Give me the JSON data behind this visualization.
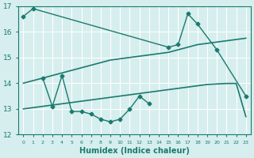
{
  "xlabel": "Humidex (Indice chaleur)",
  "x_values": [
    0,
    1,
    2,
    3,
    4,
    5,
    6,
    7,
    8,
    9,
    10,
    11,
    12,
    13,
    14,
    15,
    16,
    17,
    18,
    19,
    20,
    21,
    22,
    23
  ],
  "line1": [
    16.6,
    16.9,
    null,
    null,
    null,
    null,
    null,
    null,
    null,
    null,
    null,
    null,
    null,
    null,
    null,
    15.4,
    15.5,
    16.7,
    16.3,
    null,
    15.3,
    null,
    null,
    13.5
  ],
  "line2": [
    null,
    null,
    14.2,
    13.1,
    14.3,
    12.9,
    12.9,
    12.8,
    12.6,
    12.5,
    12.6,
    13.0,
    13.5,
    13.2,
    null,
    null,
    null,
    null,
    null,
    null,
    null,
    null,
    null,
    null
  ],
  "line3_slope": [
    14.0,
    14.1,
    14.2,
    14.3,
    14.4,
    14.5,
    14.6,
    14.7,
    14.8,
    14.9,
    14.95,
    15.0,
    15.05,
    15.1,
    15.15,
    15.2,
    15.3,
    15.4,
    15.5,
    15.55,
    15.6,
    15.65,
    15.7,
    15.75
  ],
  "line4_slope": [
    13.0,
    13.05,
    13.1,
    13.15,
    13.2,
    13.25,
    13.3,
    13.35,
    13.4,
    13.45,
    13.5,
    13.55,
    13.6,
    13.65,
    13.7,
    13.75,
    13.8,
    13.85,
    13.9,
    13.95,
    13.97,
    13.99,
    13.99,
    12.7
  ],
  "bg_color": "#d6eeee",
  "line_color": "#1a7a6e",
  "grid_color": "#ffffff",
  "ylim": [
    12,
    17
  ],
  "xlim": [
    -0.5,
    23.5
  ]
}
